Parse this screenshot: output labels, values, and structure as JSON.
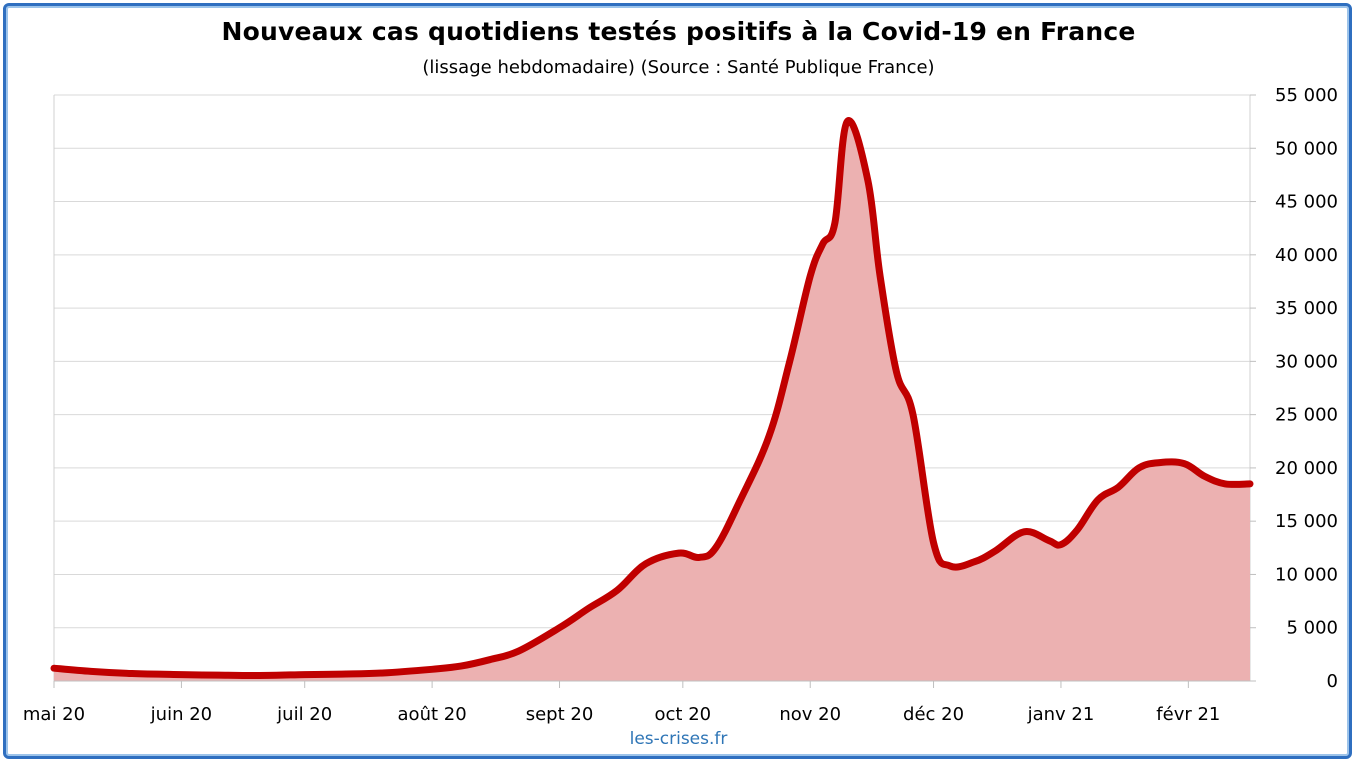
{
  "colors": {
    "line": "#c00000",
    "fill": "#ecb1b1",
    "frame": "#2f6fc0",
    "credit": "#2e75b6",
    "grid": "#d9d9d9"
  },
  "credit": "les-crises.fr",
  "chart_data": {
    "type": "area",
    "title": "Nouveaux cas quotidiens testés positifs à la Covid-19 en France",
    "subtitle": "(lissage hebdomadaire) (Source : Santé Publique France)",
    "y_axis_side": "right",
    "ylim": [
      0,
      55000
    ],
    "yticks": [
      0,
      5000,
      10000,
      15000,
      20000,
      25000,
      30000,
      35000,
      40000,
      45000,
      50000,
      55000
    ],
    "ytick_labels": [
      "0",
      "5 000",
      "10 000",
      "15 000",
      "20 000",
      "25 000",
      "30 000",
      "35 000",
      "40 000",
      "45 000",
      "50 000",
      "55 000"
    ],
    "xlim": [
      "2020-05-01",
      "2021-02-16"
    ],
    "xticks": [
      "2020-05-01",
      "2020-06-01",
      "2020-07-01",
      "2020-08-01",
      "2020-09-01",
      "2020-10-01",
      "2020-11-01",
      "2020-12-01",
      "2021-01-01",
      "2021-02-01"
    ],
    "xtick_labels": [
      "mai 20",
      "juin 20",
      "juil 20",
      "août 20",
      "sept 20",
      "oct 20",
      "nov 20",
      "déc 20",
      "janv 21",
      "févr 21"
    ],
    "grid": true,
    "series": [
      {
        "x": [
          "2020-05-01",
          "2020-05-10",
          "2020-05-20",
          "2020-06-01",
          "2020-06-10",
          "2020-06-20",
          "2020-07-01",
          "2020-07-10",
          "2020-07-20",
          "2020-08-01",
          "2020-08-08",
          "2020-08-15",
          "2020-08-22",
          "2020-09-01",
          "2020-09-08",
          "2020-09-15",
          "2020-09-22",
          "2020-09-30",
          "2020-10-05",
          "2020-10-09",
          "2020-10-15",
          "2020-10-22",
          "2020-10-27",
          "2020-11-01",
          "2020-11-04",
          "2020-11-07",
          "2020-11-10",
          "2020-11-15",
          "2020-11-18",
          "2020-11-22",
          "2020-11-26",
          "2020-12-01",
          "2020-12-05",
          "2020-12-11",
          "2020-12-16",
          "2020-12-23",
          "2020-12-29",
          "2021-01-01",
          "2021-01-05",
          "2021-01-10",
          "2021-01-15",
          "2021-01-20",
          "2021-01-25",
          "2021-01-31",
          "2021-02-05",
          "2021-02-10",
          "2021-02-16"
        ],
        "y": [
          1200,
          900,
          700,
          600,
          550,
          520,
          600,
          650,
          750,
          1100,
          1400,
          2000,
          2800,
          5000,
          6800,
          8500,
          11000,
          12000,
          11600,
          12500,
          17000,
          23000,
          30000,
          38000,
          41000,
          43000,
          52500,
          47000,
          38000,
          29000,
          25000,
          13000,
          10800,
          11200,
          12200,
          14000,
          13200,
          12800,
          14200,
          17000,
          18200,
          20000,
          20500,
          20400,
          19200,
          18500,
          18500
        ]
      }
    ]
  }
}
